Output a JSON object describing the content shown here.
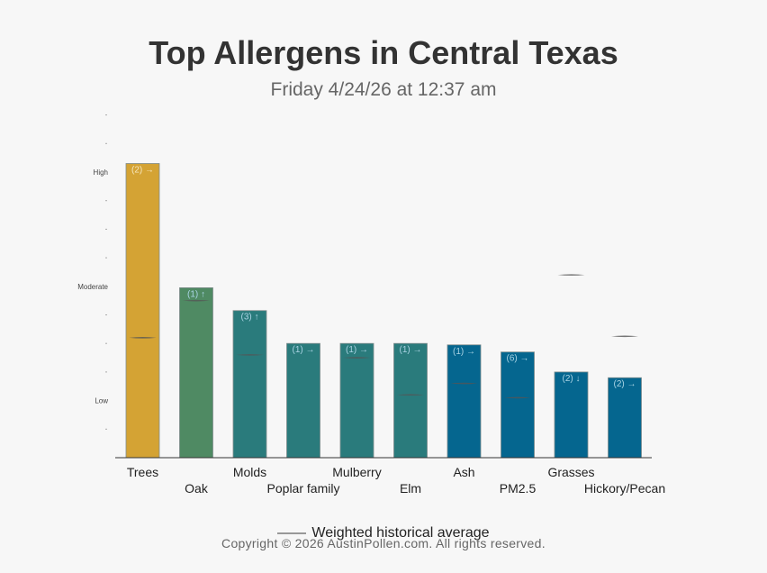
{
  "chart_data": {
    "type": "bar",
    "title": "Top Allergens in Central Texas",
    "subtitle": "Friday 4/24/26 at 12:37 am",
    "y_levels": [
      "Low",
      "Moderate",
      "High"
    ],
    "ylim": [
      0,
      12
    ],
    "grid": false,
    "legend": {
      "label": "Weighted historical average",
      "placement": "bottom"
    },
    "categories": [
      "Trees",
      "Oak",
      "Molds",
      "Poplar family",
      "Mulberry",
      "Elm",
      "Ash",
      "PM2.5",
      "Grasses",
      "Hickory/Pecan"
    ],
    "values": [
      10.3,
      5.95,
      5.15,
      4.0,
      4.0,
      4.0,
      3.95,
      3.7,
      3.0,
      2.8
    ],
    "historical_average": [
      4.2,
      5.5,
      3.6,
      null,
      3.5,
      2.2,
      2.6,
      2.1,
      6.4,
      4.25
    ],
    "annotations": [
      "(2) →",
      "(1) ↑",
      "(3) ↑",
      "(1) →",
      "(1) →",
      "(1) →",
      "(1) →",
      "(6) →",
      "(2) ↓",
      "(2) →"
    ],
    "colors": [
      "#d4a334",
      "#4f8a63",
      "#2a7b7c",
      "#2a7b7c",
      "#2a7b7c",
      "#2a7b7c",
      "#05668f",
      "#05668f",
      "#05668f",
      "#05668f"
    ]
  },
  "footer": {
    "copyright": "Copyright © 2026 AustinPollen.com.  All rights reserved."
  }
}
